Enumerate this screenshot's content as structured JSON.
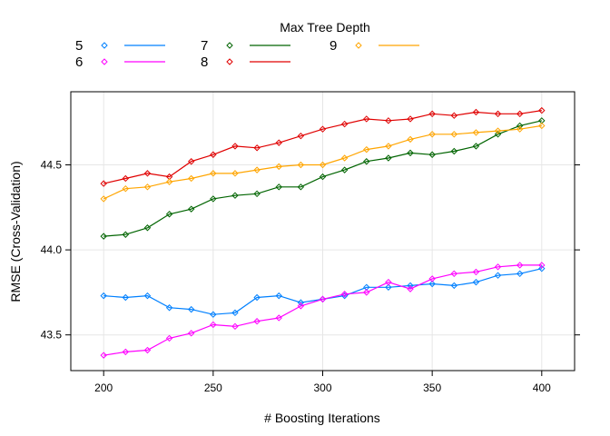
{
  "chart_data": {
    "type": "line",
    "title": "",
    "xlabel": "# Boosting Iterations",
    "ylabel": "RMSE (Cross-Validation)",
    "legend_title": "Max Tree Depth",
    "legend_placement": "top",
    "grid": true,
    "xlim": [
      185,
      415
    ],
    "ylim": [
      43.29,
      44.93
    ],
    "x_ticks": [
      200,
      250,
      300,
      350,
      400
    ],
    "y_ticks": [
      43.5,
      44.0,
      44.5
    ],
    "y_tick_labels": [
      "43.5",
      "44.0",
      "44.5"
    ],
    "x": [
      200,
      210,
      220,
      230,
      240,
      250,
      260,
      270,
      280,
      290,
      300,
      310,
      320,
      330,
      340,
      350,
      360,
      370,
      380,
      390,
      400
    ],
    "series": [
      {
        "name": "5",
        "color": "#0080ff",
        "values": [
          43.73,
          43.72,
          43.73,
          43.66,
          43.65,
          43.62,
          43.63,
          43.72,
          43.73,
          43.69,
          43.71,
          43.73,
          43.78,
          43.78,
          43.79,
          43.8,
          43.79,
          43.81,
          43.85,
          43.86,
          43.89
        ]
      },
      {
        "name": "6",
        "color": "#ff00ff",
        "values": [
          43.38,
          43.4,
          43.41,
          43.48,
          43.51,
          43.56,
          43.55,
          43.58,
          43.6,
          43.67,
          43.71,
          43.74,
          43.75,
          43.81,
          43.77,
          43.83,
          43.86,
          43.87,
          43.9,
          43.91,
          43.91
        ]
      },
      {
        "name": "7",
        "color": "#006400",
        "values": [
          44.08,
          44.09,
          44.13,
          44.21,
          44.24,
          44.3,
          44.32,
          44.33,
          44.37,
          44.37,
          44.43,
          44.47,
          44.52,
          44.54,
          44.57,
          44.56,
          44.58,
          44.61,
          44.68,
          44.73,
          44.76
        ]
      },
      {
        "name": "8",
        "color": "#e00000",
        "values": [
          44.39,
          44.42,
          44.45,
          44.43,
          44.52,
          44.56,
          44.61,
          44.6,
          44.63,
          44.67,
          44.71,
          44.74,
          44.77,
          44.76,
          44.77,
          44.8,
          44.79,
          44.81,
          44.8,
          44.8,
          44.82
        ]
      },
      {
        "name": "9",
        "color": "#ffa500",
        "values": [
          44.3,
          44.36,
          44.37,
          44.4,
          44.42,
          44.45,
          44.45,
          44.47,
          44.49,
          44.5,
          44.5,
          44.54,
          44.59,
          44.61,
          44.65,
          44.68,
          44.68,
          44.69,
          44.7,
          44.71,
          44.73
        ]
      }
    ]
  }
}
